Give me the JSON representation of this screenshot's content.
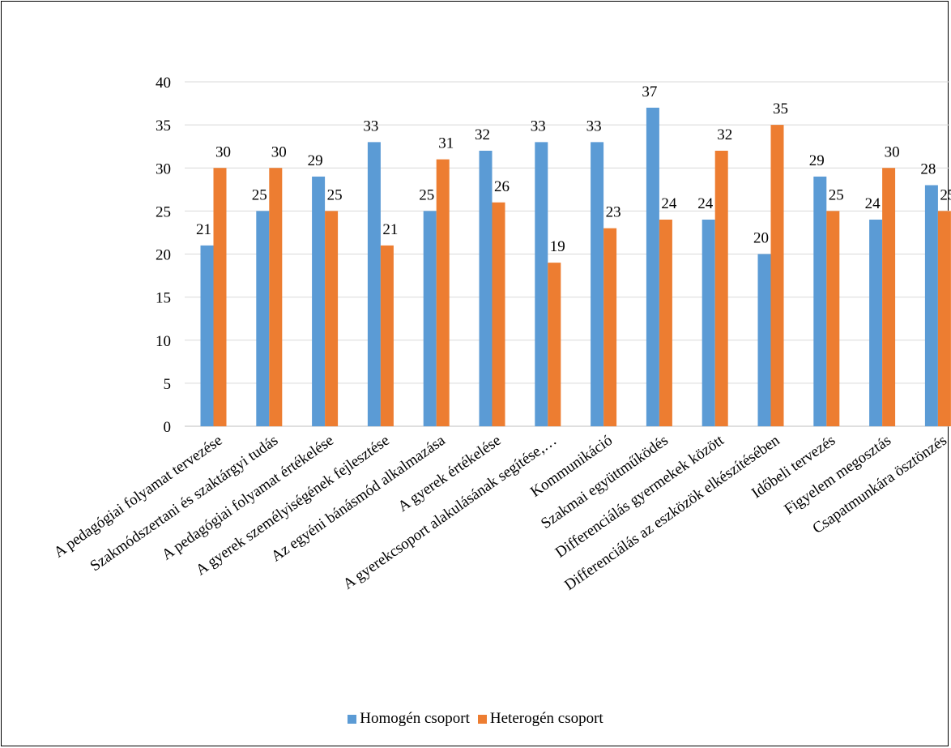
{
  "chart_data": {
    "type": "bar",
    "title": "",
    "xlabel": "",
    "ylabel": "",
    "ylim": [
      0,
      40
    ],
    "yticks": [
      0,
      5,
      10,
      15,
      20,
      25,
      30,
      35,
      40
    ],
    "grid": true,
    "legend_position": "bottom",
    "categories": [
      "A pedagógiai folyamat tervezése",
      "Szakmódszertani és szaktárgyi tudás",
      "A pedagógiai folyamat értékelése",
      "A gyerek személyiségének fejlesztése",
      "Az egyéni bánásmód alkalmazása",
      "A gyerek értékelése",
      "A gyerekcsoport alakulásának segítése,…",
      "Kommunikáció",
      "Szakmai együttműködés",
      "Differenciálás gyermekek között",
      "Differenciálás az eszközök elkészítésében",
      "Időbeli tervezés",
      "Figyelem megosztás",
      "Csapatmunkára ösztönzés"
    ],
    "series": [
      {
        "name": "Homogén csoport",
        "color": "#5B9BD5",
        "values": [
          21,
          25,
          29,
          33,
          25,
          32,
          33,
          33,
          37,
          24,
          20,
          29,
          24,
          28
        ]
      },
      {
        "name": "Heterogén csoport",
        "color": "#ED7D31",
        "values": [
          30,
          30,
          25,
          21,
          31,
          26,
          19,
          23,
          24,
          32,
          35,
          25,
          30,
          25
        ]
      }
    ]
  }
}
